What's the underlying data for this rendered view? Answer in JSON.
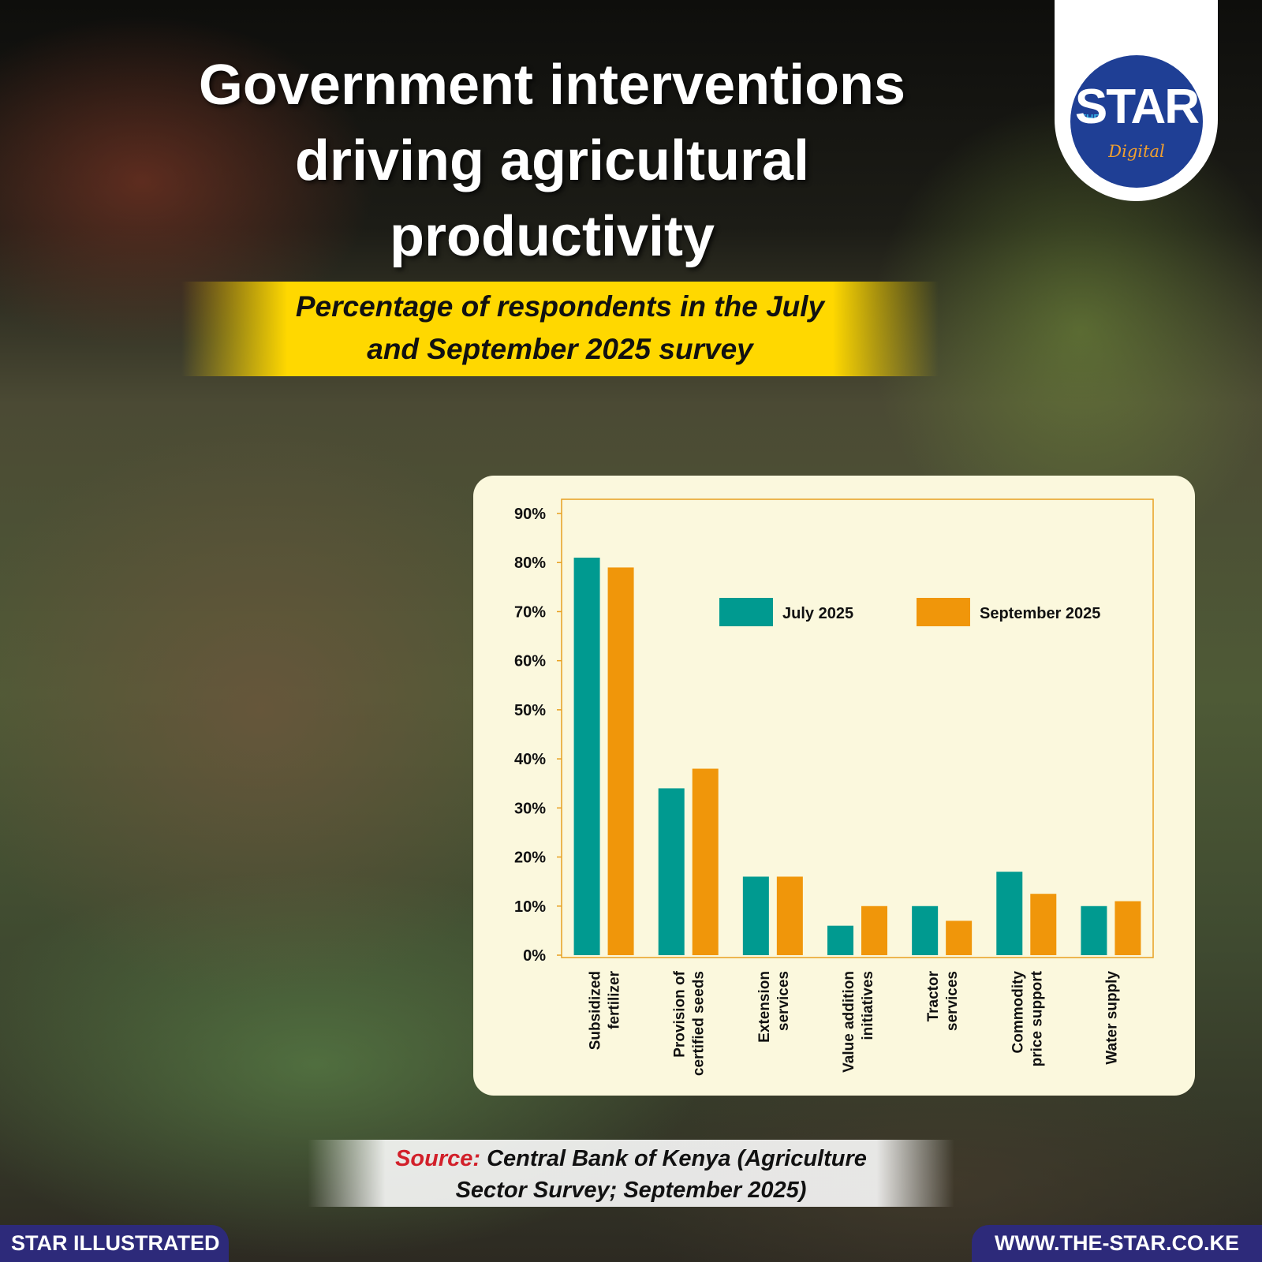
{
  "header": {
    "title_lines": [
      "Government interventions",
      "driving agricultural",
      "productivity"
    ],
    "subtitle_lines": [
      "Percentage of respondents in the July",
      "and September 2025 survey"
    ]
  },
  "logo": {
    "the": "THE",
    "word": "STAR",
    "sub": "Digital"
  },
  "source": {
    "label": "Source:",
    "line1": "Central Bank of Kenya (Agriculture",
    "line2": "Sector Survey; September 2025)"
  },
  "footer": {
    "left": "STAR ILLUSTRATED",
    "right": "WWW.THE-STAR.CO.KE"
  },
  "chart_data": {
    "type": "bar",
    "title": "",
    "xlabel": "",
    "ylabel": "",
    "ylim": [
      0,
      90
    ],
    "yticks": [
      0,
      10,
      20,
      30,
      40,
      50,
      60,
      70,
      80,
      90
    ],
    "ytick_labels": [
      "0%",
      "10%",
      "20%",
      "30%",
      "40%",
      "50%",
      "60%",
      "70%",
      "80%",
      "90%"
    ],
    "grid": false,
    "legend_position": "top-right",
    "categories": [
      [
        "Subsidized",
        "fertilizer"
      ],
      [
        "Provision of",
        "certified seeds"
      ],
      [
        "Extension",
        "services"
      ],
      [
        "Value addition",
        "initiatives"
      ],
      [
        "Tractor",
        "services"
      ],
      [
        "Commodity",
        "price support"
      ],
      [
        "Water supply"
      ]
    ],
    "series": [
      {
        "name": "July 2025",
        "color": "#009a90",
        "values": [
          81,
          34,
          16,
          6,
          10,
          17,
          10
        ]
      },
      {
        "name": "September 2025",
        "color": "#f0960a",
        "values": [
          79,
          38,
          16,
          10,
          7,
          12.5,
          11
        ]
      }
    ]
  }
}
